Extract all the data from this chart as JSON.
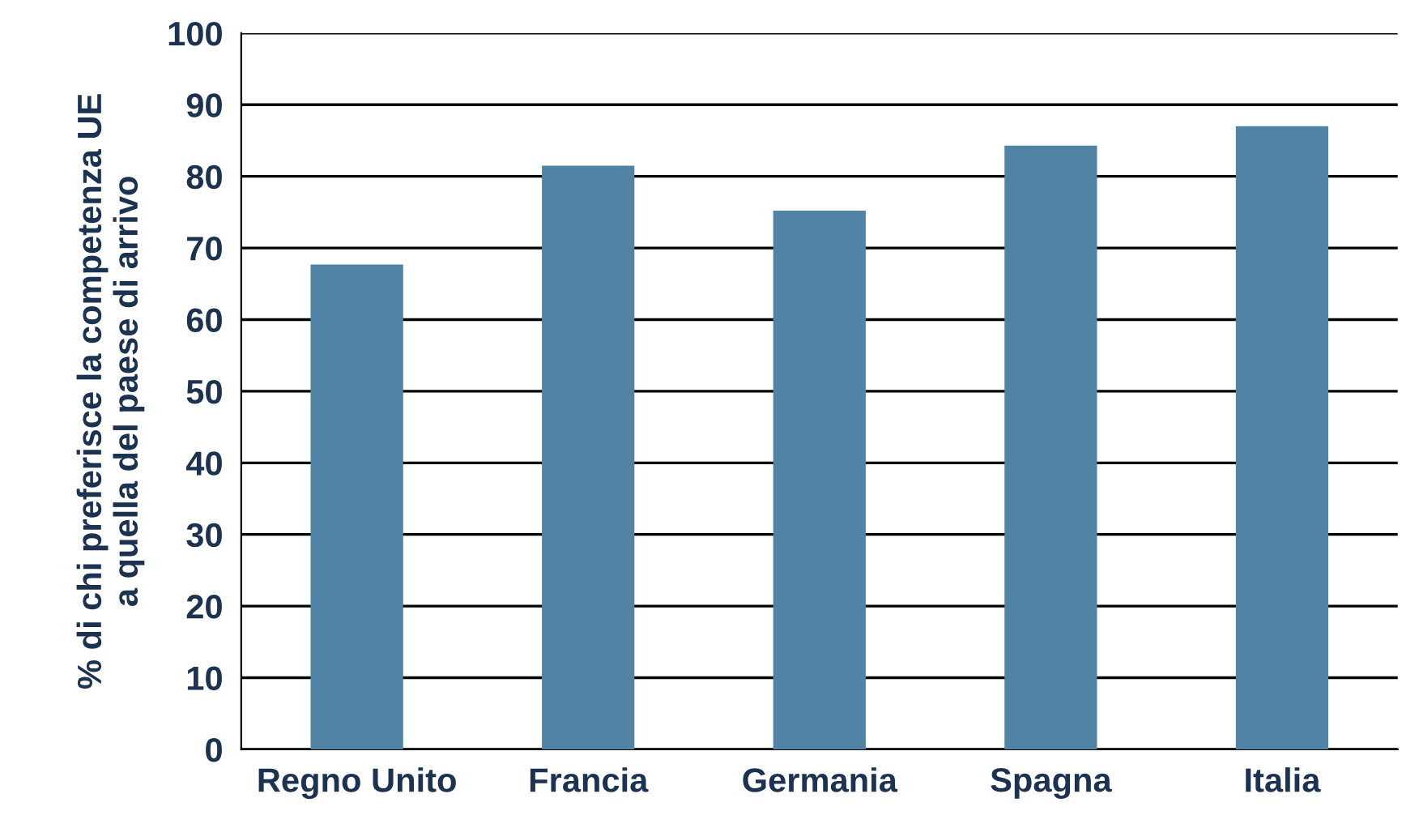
{
  "chart_data": {
    "type": "bar",
    "ylabel": "% di chi preferisce la competenza UE\na quella del paese di arrivo",
    "categories": [
      "Regno Unito",
      "Francia",
      "Germania",
      "Spagna",
      "Italia"
    ],
    "values": [
      67.7,
      81.5,
      75.2,
      84.3,
      87.0
    ],
    "color": "#5083a4",
    "ylim": [
      0,
      100
    ],
    "yticks": [
      0,
      10,
      20,
      30,
      40,
      50,
      60,
      70,
      80,
      90,
      100
    ],
    "grid": "y"
  }
}
